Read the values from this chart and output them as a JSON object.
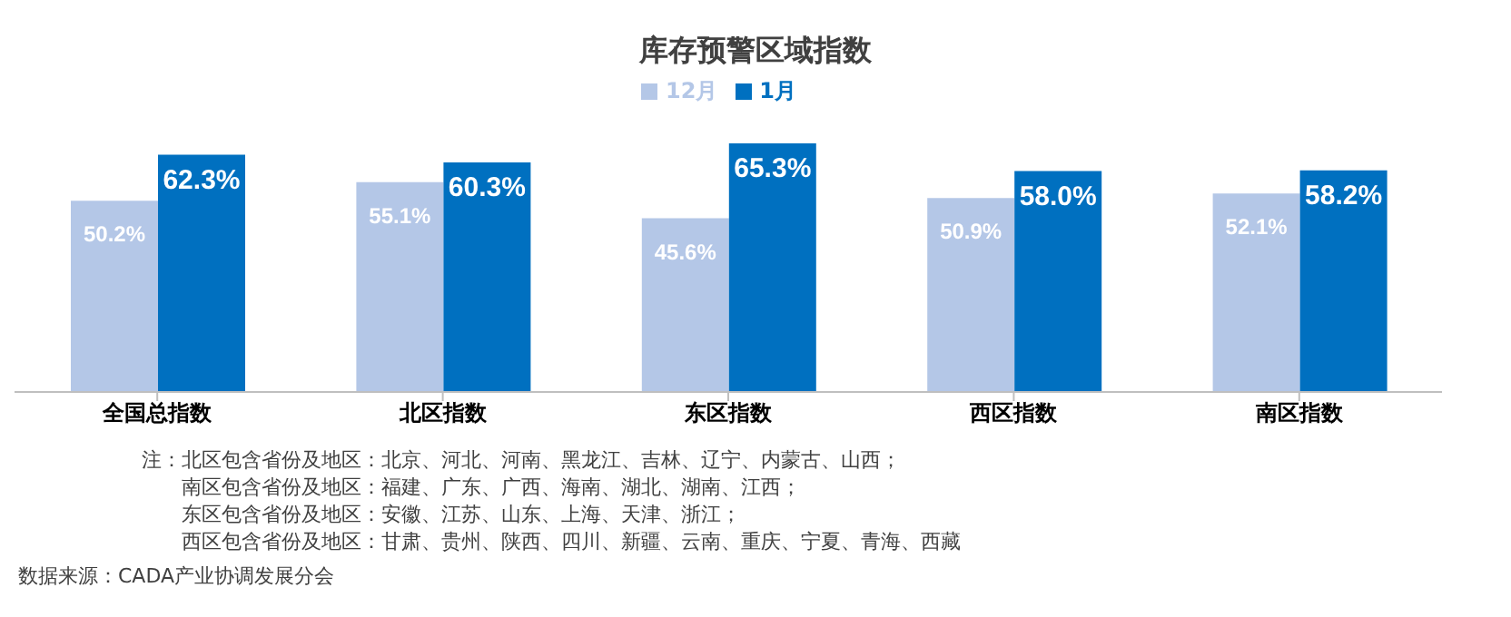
{
  "chart_data": {
    "type": "bar",
    "title": "库存预警区域指数",
    "categories": [
      "全国总指数",
      "北区指数",
      "东区指数",
      "西区指数",
      "南区指数"
    ],
    "series": [
      {
        "name": "12月",
        "color": "#b4c7e7",
        "values": [
          50.2,
          55.1,
          45.6,
          50.9,
          52.1
        ],
        "value_labels": [
          "50.2%",
          "55.1%",
          "45.6%",
          "50.9%",
          "52.1%"
        ]
      },
      {
        "name": "1月",
        "color": "#0070c0",
        "values": [
          62.3,
          60.3,
          65.3,
          58.0,
          58.2
        ],
        "value_labels": [
          "62.3%",
          "60.3%",
          "65.3%",
          "58.0%",
          "58.2%"
        ]
      }
    ],
    "legend": "top",
    "annotations": [
      "注：北区包含省份及地区：北京、河北、河南、黑龙江、吉林、辽宁、内蒙古、山西；",
      "南区包含省份及地区：福建、广东、广西、海南、湖北、湖南、江西；",
      "东区包含省份及地区：安徽、江苏、山东、上海、天津、浙江；",
      "西区包含省份及地区：甘肃、贵州、陕西、四川、新疆、云南、重庆、宁夏、青海、西藏",
      "数据来源：CADA产业协调发展分会"
    ]
  }
}
